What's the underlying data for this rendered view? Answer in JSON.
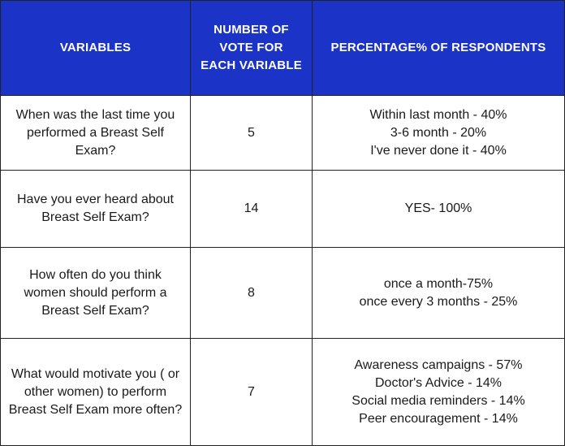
{
  "table": {
    "headers": {
      "variables": "VARIABLES",
      "votes": "NUMBER OF VOTE FOR EACH VARIABLE",
      "percentage": "PERCENTAGE% OF RESPONDENTS"
    },
    "rows": [
      {
        "question": "When was the last time you performed a  Breast Self Exam?",
        "votes": "5",
        "percentages": [
          "Within last month - 40%",
          "3-6 month - 20%",
          "I've never done it - 40%"
        ]
      },
      {
        "question": "Have you ever heard about Breast Self Exam?",
        "votes": "14",
        "percentages": [
          "YES- 100%"
        ]
      },
      {
        "question": "How often do you think women should perform a Breast Self Exam?",
        "votes": "8",
        "percentages": [
          "once a month-75%",
          "once every 3 months - 25%"
        ]
      },
      {
        "question": "What would motivate you ( or other women) to perform Breast Self Exam more often?",
        "votes": "7",
        "percentages": [
          "Awareness campaigns - 57%",
          "Doctor's Advice - 14%",
          "Social media reminders - 14%",
          "Peer encouragement - 14%"
        ]
      }
    ]
  },
  "colors": {
    "header_background": "#1c33c8",
    "header_text": "#ffffff",
    "border": "#222222"
  }
}
